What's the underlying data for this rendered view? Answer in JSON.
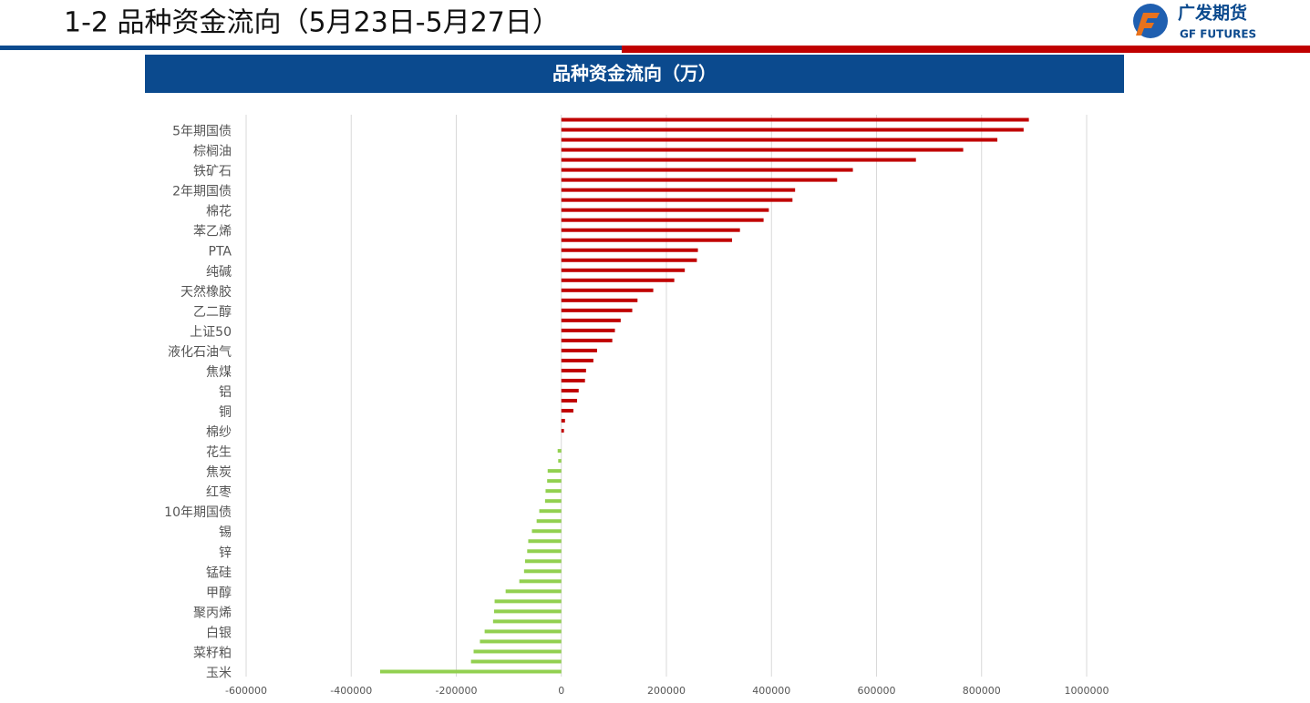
{
  "header": {
    "title": "1-2  品种资金流向（5月23日-5月27日）",
    "logo_cn": "广发期货",
    "logo_en": "GF FUTURES"
  },
  "chart_data": {
    "type": "bar",
    "orientation": "horizontal",
    "title": "品种资金流向（万）",
    "categories": [
      null,
      "5年期国债",
      null,
      "棕榈油",
      null,
      "铁矿石",
      null,
      "2年期国债",
      null,
      "棉花",
      null,
      "苯乙烯",
      null,
      "PTA",
      null,
      "纯碱",
      null,
      "天然橡胶",
      null,
      "乙二醇",
      null,
      "上证50",
      null,
      "液化石油气",
      null,
      "焦煤",
      null,
      "铝",
      null,
      "铜",
      null,
      "棉纱",
      null,
      "花生",
      null,
      "焦炭",
      null,
      "红枣",
      null,
      "10年期国债",
      null,
      "锡",
      null,
      "锌",
      null,
      "锰硅",
      null,
      "甲醇",
      null,
      "聚丙烯",
      null,
      "白银",
      null,
      "菜籽粕",
      null,
      "玉米"
    ],
    "values": [
      890000,
      880000,
      830000,
      765000,
      675000,
      555000,
      525000,
      445000,
      440000,
      395000,
      385000,
      340000,
      325000,
      260000,
      258000,
      235000,
      215000,
      175000,
      145000,
      135000,
      113000,
      102000,
      97000,
      68000,
      61000,
      47000,
      45000,
      33000,
      30000,
      23000,
      7000,
      5000,
      0,
      -7000,
      -6000,
      -26000,
      -27000,
      -30000,
      -31000,
      -42000,
      -47000,
      -56000,
      -63000,
      -65000,
      -69000,
      -71000,
      -80000,
      -106000,
      -127000,
      -128000,
      -130000,
      -146000,
      -155000,
      -167000,
      -172000,
      -345000
    ],
    "positive_color": "#c00000",
    "negative_color": "#92d050",
    "xlim": [
      -600000,
      1000000
    ],
    "xticks": [
      -600000,
      -400000,
      -200000,
      0,
      200000,
      400000,
      600000,
      800000,
      1000000
    ],
    "grid": true
  }
}
